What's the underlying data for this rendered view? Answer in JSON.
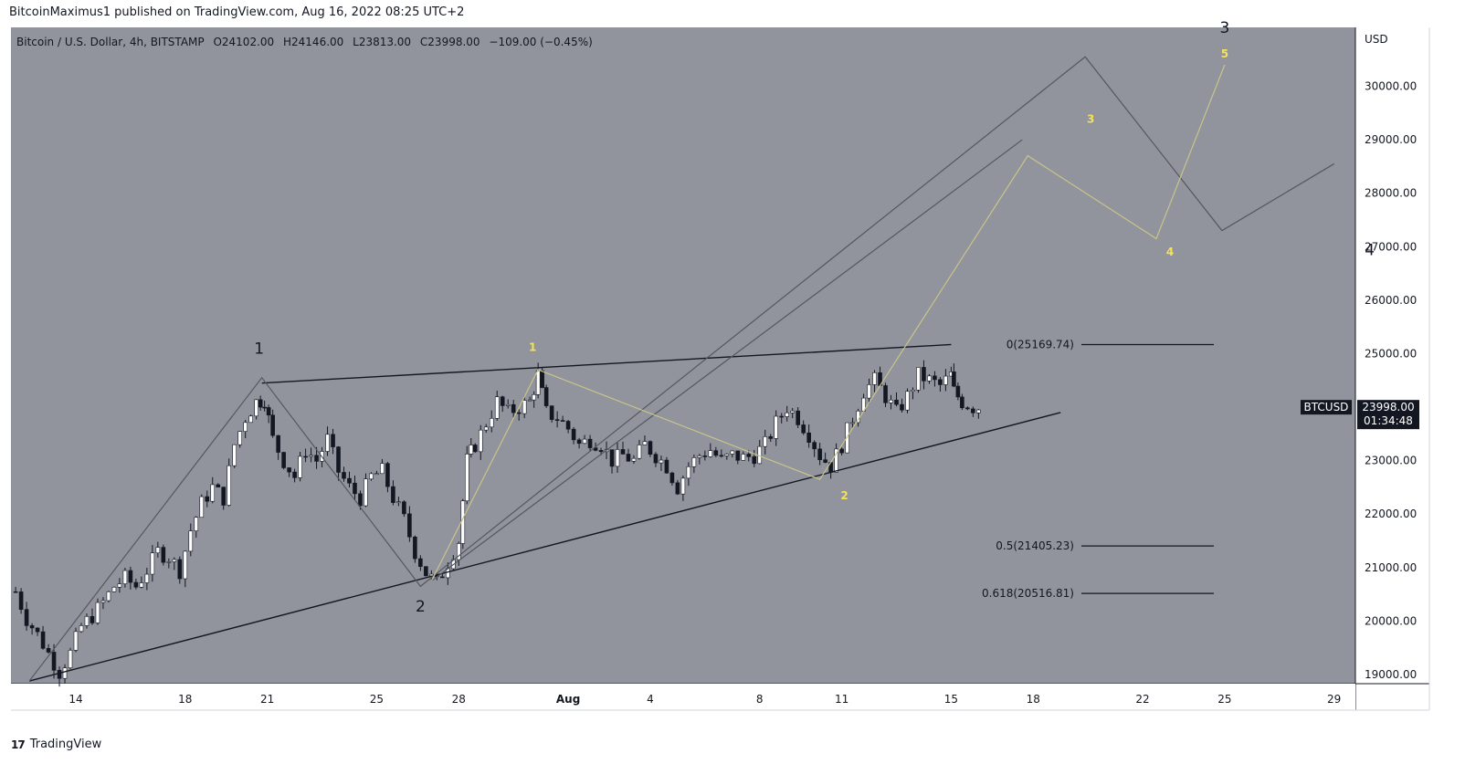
{
  "published": "BitcoinMaximus1 published on TradingView.com, Aug 16, 2022 08:25 UTC+2",
  "footer": {
    "brand": "TradingView"
  },
  "colors": {
    "plot_bg": "#91949c",
    "bull": "#ffffff",
    "bear": "#131722",
    "wave_gray": "#54575f",
    "wave_yellow": "#c9c48b",
    "label_yellow": "#f5e15a"
  },
  "chart_data": {
    "type": "candlestick",
    "symbol_line": {
      "prefix": "Bitcoin / U.S. Dollar, 4h, BITSTAMP",
      "o_label": "O",
      "o": "24102.00",
      "h_label": "H",
      "h": "24146.00",
      "l_label": "L",
      "l": "23813.00",
      "c_label": "C",
      "c": "23998.00",
      "change": "−109.00 (−0.45%)"
    },
    "currency": "USD",
    "ylim": [
      18830,
      31100
    ],
    "y_ticks": [
      "19000.00",
      "20000.00",
      "21000.00",
      "22000.00",
      "23000.00",
      "24000.00",
      "25000.00",
      "26000.00",
      "27000.00",
      "28000.00",
      "29000.00",
      "30000.00"
    ],
    "x_ticks": [
      {
        "label": "14",
        "d": 0
      },
      {
        "label": "18",
        "d": 4
      },
      {
        "label": "21",
        "d": 7
      },
      {
        "label": "25",
        "d": 11
      },
      {
        "label": "28",
        "d": 14
      },
      {
        "label": "Aug",
        "d": 18
      },
      {
        "label": "4",
        "d": 21
      },
      {
        "label": "8",
        "d": 25
      },
      {
        "label": "11",
        "d": 28
      },
      {
        "label": "15",
        "d": 32
      },
      {
        "label": "18",
        "d": 35
      },
      {
        "label": "22",
        "d": 39
      },
      {
        "label": "25",
        "d": 42
      },
      {
        "label": "29",
        "d": 46
      }
    ],
    "x_origin_date": "2022-07-14",
    "price_badge": {
      "symbol": "BTCUSD",
      "price": "23998.00",
      "countdown": "01:34:48",
      "value": 23998
    },
    "close_path": [
      [
        -2.2,
        20550
      ],
      [
        -1.8,
        20050
      ],
      [
        -1.4,
        19750
      ],
      [
        -1.0,
        19400
      ],
      [
        -0.6,
        19050
      ],
      [
        -0.2,
        19400
      ],
      [
        0.2,
        19900
      ],
      [
        0.6,
        20100
      ],
      [
        1.0,
        20350
      ],
      [
        1.4,
        20650
      ],
      [
        1.8,
        20800
      ],
      [
        2.2,
        20650
      ],
      [
        2.6,
        20950
      ],
      [
        3.0,
        21300
      ],
      [
        3.4,
        21200
      ],
      [
        3.8,
        20950
      ],
      [
        4.2,
        21700
      ],
      [
        4.6,
        22200
      ],
      [
        5.0,
        22500
      ],
      [
        5.4,
        22300
      ],
      [
        5.8,
        23300
      ],
      [
        6.2,
        23800
      ],
      [
        6.6,
        24100
      ],
      [
        6.9,
        24150
      ],
      [
        7.2,
        23400
      ],
      [
        7.6,
        23000
      ],
      [
        8.0,
        22700
      ],
      [
        8.4,
        23200
      ],
      [
        8.8,
        23000
      ],
      [
        9.2,
        23400
      ],
      [
        9.6,
        22800
      ],
      [
        10.0,
        22500
      ],
      [
        10.4,
        22300
      ],
      [
        10.8,
        22700
      ],
      [
        11.2,
        22800
      ],
      [
        11.6,
        22300
      ],
      [
        12.0,
        21900
      ],
      [
        12.4,
        21300
      ],
      [
        12.8,
        20900
      ],
      [
        13.2,
        20700
      ],
      [
        13.6,
        21100
      ],
      [
        14.0,
        21500
      ],
      [
        14.3,
        23000
      ],
      [
        14.6,
        23300
      ],
      [
        15.0,
        23700
      ],
      [
        15.4,
        24100
      ],
      [
        15.8,
        23900
      ],
      [
        16.2,
        24000
      ],
      [
        16.6,
        24100
      ],
      [
        16.9,
        24600
      ],
      [
        17.2,
        23900
      ],
      [
        17.6,
        23800
      ],
      [
        18.0,
        23600
      ],
      [
        18.4,
        23300
      ],
      [
        18.8,
        23400
      ],
      [
        19.2,
        23300
      ],
      [
        19.6,
        23000
      ],
      [
        20.0,
        23100
      ],
      [
        20.4,
        23000
      ],
      [
        20.8,
        23300
      ],
      [
        21.2,
        23100
      ],
      [
        21.6,
        22900
      ],
      [
        22.0,
        22500
      ],
      [
        22.4,
        22900
      ],
      [
        22.8,
        23100
      ],
      [
        23.2,
        23200
      ],
      [
        23.6,
        23000
      ],
      [
        24.0,
        23100
      ],
      [
        24.4,
        23050
      ],
      [
        24.8,
        23100
      ],
      [
        25.2,
        23300
      ],
      [
        25.6,
        23700
      ],
      [
        26.0,
        24000
      ],
      [
        26.4,
        23800
      ],
      [
        26.8,
        23500
      ],
      [
        27.2,
        23100
      ],
      [
        27.6,
        22900
      ],
      [
        28.0,
        23300
      ],
      [
        28.4,
        23800
      ],
      [
        28.8,
        24300
      ],
      [
        29.2,
        24500
      ],
      [
        29.6,
        24200
      ],
      [
        30.0,
        23900
      ],
      [
        30.4,
        24200
      ],
      [
        30.8,
        24600
      ],
      [
        31.2,
        24500
      ],
      [
        31.6,
        24400
      ],
      [
        32.0,
        24600
      ],
      [
        32.1,
        24300
      ],
      [
        32.4,
        24100
      ],
      [
        32.8,
        24000
      ],
      [
        33.2,
        24000
      ]
    ],
    "trendlines": [
      {
        "name": "wedge-upper",
        "from": [
          6.8,
          24450
        ],
        "to": [
          32.0,
          25170
        ]
      },
      {
        "name": "wedge-lower",
        "from": [
          -1.7,
          18880
        ],
        "to": [
          36.0,
          23900
        ]
      }
    ],
    "wave_gray": [
      [
        -1.7,
        18880
      ],
      [
        6.8,
        24550
      ],
      [
        12.6,
        20650
      ],
      [
        36.9,
        30550
      ],
      [
        41.9,
        27300
      ],
      [
        46.0,
        28550
      ]
    ],
    "wave_gray_diag": [
      [
        13.0,
        20750
      ],
      [
        34.6,
        29000
      ]
    ],
    "wave_yellow": [
      [
        13.0,
        20750
      ],
      [
        16.9,
        24700
      ],
      [
        27.2,
        22650
      ],
      [
        34.8,
        28700
      ],
      [
        39.5,
        27150
      ],
      [
        42.0,
        30400
      ]
    ],
    "wave_labels_black": [
      {
        "text": "1",
        "d": 6.7,
        "p": 25000
      },
      {
        "text": "2",
        "d": 12.6,
        "p": 20180
      },
      {
        "text": "3",
        "d": 42.0,
        "p": 31000
      },
      {
        "text": "4",
        "d": 47.3,
        "p": 26840
      }
    ],
    "wave_labels_yellow": [
      {
        "text": "1",
        "d": 16.7,
        "p": 25050
      },
      {
        "text": "2",
        "d": 28.1,
        "p": 22280
      },
      {
        "text": "3",
        "d": 37.1,
        "p": 29320
      },
      {
        "text": "4",
        "d": 40.0,
        "p": 26830
      },
      {
        "text": "5",
        "d": 42.0,
        "p": 30540
      }
    ],
    "fib_levels": [
      {
        "label": "0(25169.74)",
        "value": 25169.74
      },
      {
        "label": "0.5(21405.23)",
        "value": 21405.23
      },
      {
        "label": "0.618(20516.81)",
        "value": 20516.81
      }
    ]
  }
}
